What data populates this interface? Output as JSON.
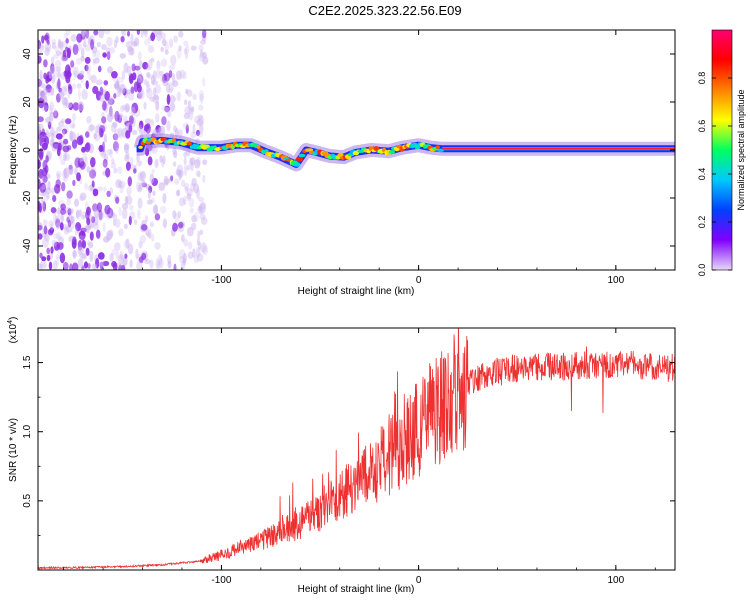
{
  "title": "C2E2.2025.323.22.56.E09",
  "chart_data": [
    {
      "type": "heatmap",
      "xlabel": "Height of straight line (km)",
      "ylabel": "Frequency (Hz)",
      "xlim": [
        -193,
        130
      ],
      "ylim": [
        -50,
        50
      ],
      "xticks": [
        -100,
        0,
        100
      ],
      "yticks": [
        -40,
        -20,
        0,
        20,
        40
      ],
      "colorbar": {
        "label": "Normalized spectral amplitude",
        "range": [
          0.0,
          1.0
        ],
        "ticks": [
          0.0,
          0.2,
          0.4,
          0.6,
          0.8
        ],
        "colors": [
          "#e8d8f8",
          "#8000ff",
          "#0040ff",
          "#00c8ff",
          "#00ff60",
          "#ffff00",
          "#ff8000",
          "#ff0000",
          "#ff0070"
        ]
      },
      "noise_region_x": [
        -193,
        -108
      ],
      "signal_start_x": -143,
      "stable_start_x": 12,
      "ridge": [
        {
          "x": -140,
          "f": 3.5
        },
        {
          "x": -130,
          "f": 4
        },
        {
          "x": -120,
          "f": 3
        },
        {
          "x": -112,
          "f": 1
        },
        {
          "x": -100,
          "f": 1
        },
        {
          "x": -92,
          "f": 2
        },
        {
          "x": -85,
          "f": 2
        },
        {
          "x": -78,
          "f": -0.5
        },
        {
          "x": -70,
          "f": -3
        },
        {
          "x": -62,
          "f": -6
        },
        {
          "x": -57,
          "f": 0
        },
        {
          "x": -52,
          "f": -1
        },
        {
          "x": -45,
          "f": -2.5
        },
        {
          "x": -38,
          "f": -3
        },
        {
          "x": -32,
          "f": -1
        },
        {
          "x": -24,
          "f": 0
        },
        {
          "x": -15,
          "f": -0.5
        },
        {
          "x": -8,
          "f": 1
        },
        {
          "x": 0,
          "f": 2
        },
        {
          "x": 6,
          "f": 1
        },
        {
          "x": 12,
          "f": 0.5
        },
        {
          "x": 130,
          "f": 0.5
        }
      ]
    },
    {
      "type": "line",
      "xlabel": "Height of straight line (km)",
      "ylabel": "SNR (10 * v/v)",
      "yscale_label": "(x10",
      "yscale_exp": "4",
      "xlim": [
        -193,
        130
      ],
      "ylim": [
        0,
        17500
      ],
      "xticks": [
        -100,
        0,
        100
      ],
      "yticks": [
        5000,
        10000,
        15000
      ],
      "ytick_labels": [
        "0.5",
        "1.0",
        "1.5"
      ],
      "color": "#ee3030",
      "series": [
        {
          "name": "SNR",
          "x": [
            -193,
            -170,
            -150,
            -130,
            -110,
            -100,
            -90,
            -80,
            -70,
            -60,
            -50,
            -40,
            -30,
            -20,
            -10,
            0,
            10,
            20,
            30,
            40,
            50,
            60,
            70,
            80,
            90,
            100,
            110,
            120,
            130
          ],
          "y": [
            150,
            180,
            250,
            380,
            650,
            1100,
            1600,
            2100,
            2700,
            3400,
            4300,
            5300,
            6400,
            7600,
            8900,
            10200,
            11600,
            12900,
            13900,
            14400,
            14600,
            14700,
            14700,
            14800,
            14800,
            14900,
            14800,
            14700,
            14600
          ]
        }
      ]
    }
  ]
}
